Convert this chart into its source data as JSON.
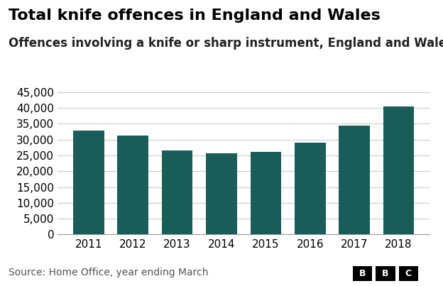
{
  "title": "Total knife offences in England and Wales",
  "subtitle": "Offences involving a knife or sharp instrument, England and Wales",
  "source": "Source: Home Office, year ending March",
  "years": [
    2011,
    2012,
    2013,
    2014,
    2015,
    2016,
    2017,
    2018
  ],
  "values": [
    32800,
    31200,
    26500,
    25600,
    26200,
    29000,
    34500,
    40500
  ],
  "bar_color": "#1a5c58",
  "background_color": "#ffffff",
  "ylim": [
    0,
    47000
  ],
  "yticks": [
    0,
    5000,
    10000,
    15000,
    20000,
    25000,
    30000,
    35000,
    40000,
    45000
  ],
  "title_fontsize": 16,
  "subtitle_fontsize": 12,
  "source_fontsize": 10,
  "tick_fontsize": 11,
  "bbc_letters": [
    "B",
    "B",
    "C"
  ]
}
